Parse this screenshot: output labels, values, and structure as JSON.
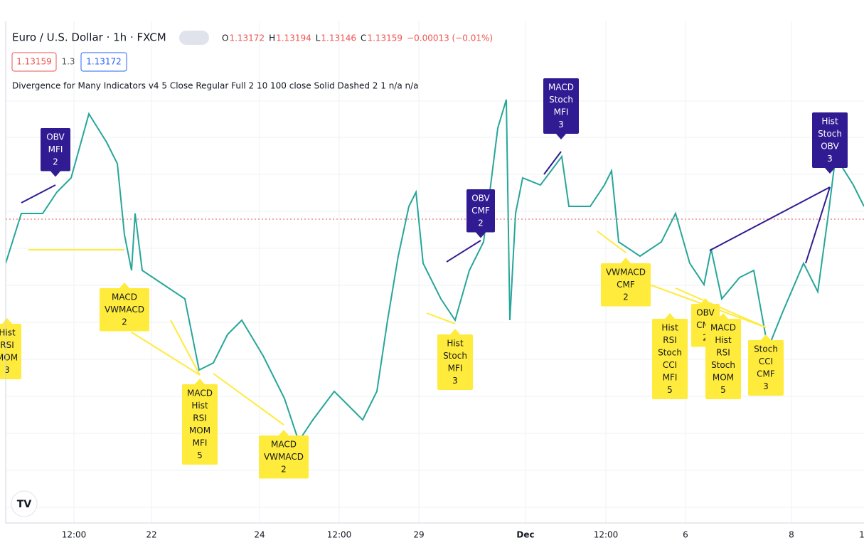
{
  "header": {
    "symbol": "Euro / U.S. Dollar · 1h · FXCM",
    "ohlc": [
      {
        "key": "O",
        "value": "1.13172"
      },
      {
        "key": "H",
        "value": "1.13194"
      },
      {
        "key": "L",
        "value": "1.13146"
      },
      {
        "key": "C",
        "value": "1.13159"
      }
    ],
    "change": "−0.00013 (−0.01%)",
    "bid": "1.13159",
    "spread": "1.3",
    "ask": "1.13172",
    "indicator": "Divergence for Many Indicators v4 5 Close Regular Full 2 10 100 close Solid Dashed 2 1  n/a  n/a"
  },
  "labels": [
    {
      "kind": "bearish",
      "lines": [
        "OBV",
        "MFI",
        "2"
      ]
    },
    {
      "kind": "bearish",
      "lines": [
        "OBV",
        "CMF",
        "2"
      ]
    },
    {
      "kind": "bearish",
      "lines": [
        "MACD",
        "Stoch",
        "MFI",
        "3"
      ]
    },
    {
      "kind": "bearish",
      "lines": [
        "Hist",
        "Stoch",
        "OBV",
        "3"
      ]
    },
    {
      "kind": "bullish",
      "lines": [
        "Hist",
        "RSI",
        "MOM",
        "3"
      ]
    },
    {
      "kind": "bullish",
      "lines": [
        "MACD",
        "VWMACD",
        "2"
      ]
    },
    {
      "kind": "bullish",
      "lines": [
        "MACD",
        "Hist",
        "RSI",
        "MOM",
        "MFI",
        "5"
      ]
    },
    {
      "kind": "bullish",
      "lines": [
        "MACD",
        "VWMACD",
        "2"
      ]
    },
    {
      "kind": "bullish",
      "lines": [
        "Hist",
        "Stoch",
        "MFI",
        "3"
      ]
    },
    {
      "kind": "bullish",
      "lines": [
        "VWMACD",
        "CMF",
        "2"
      ]
    },
    {
      "kind": "bullish",
      "lines": [
        "Hist",
        "RSI",
        "Stoch",
        "CCI",
        "MFI",
        "5"
      ]
    },
    {
      "kind": "bullish",
      "lines": [
        "OBV",
        "CMF",
        "2"
      ]
    },
    {
      "kind": "bullish",
      "lines": [
        "MACD",
        "Hist",
        "RSI",
        "Stoch",
        "MOM",
        "5"
      ]
    },
    {
      "kind": "bullish",
      "lines": [
        "Stoch",
        "CCI",
        "CMF",
        "3"
      ]
    }
  ],
  "x_axis": [
    "12:00",
    "22",
    "24",
    "12:00",
    "29",
    "Dec",
    "12:00",
    "6",
    "8",
    "1"
  ]
}
